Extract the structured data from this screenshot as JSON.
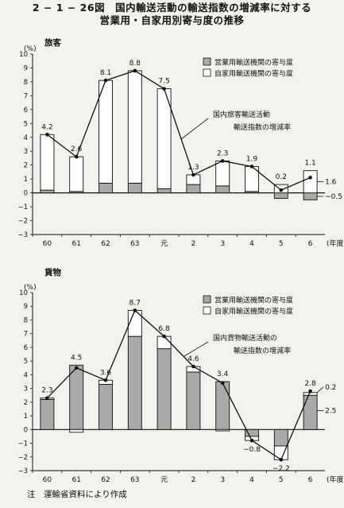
{
  "figure": {
    "title_line1": "2 − 1 − 26図　国内輸送活動の輸送指数の増減率に対する",
    "title_line2": "営業用・自家用別寄与度の推移",
    "note": "注　運輸省資料により作成"
  },
  "colors": {
    "commercial_fill": "#a9a9a9",
    "private_fill": "#ffffff",
    "stroke": "#111111",
    "background": "#f3f2ee"
  },
  "chart_data": [
    {
      "type": "bar",
      "panel_label": "旅客",
      "y_unit": "(%)",
      "x_unit": "(年度)",
      "categories": [
        "60",
        "61",
        "62",
        "63",
        "元",
        "2",
        "3",
        "4",
        "5",
        "6"
      ],
      "ylim": [
        -3,
        10
      ],
      "yticks": [
        -3,
        -2,
        -1,
        0,
        1,
        2,
        3,
        4,
        5,
        6,
        7,
        8,
        9,
        10
      ],
      "series": [
        {
          "name": "営業用輸送機関の寄与度",
          "kind": "bar-stack",
          "values": [
            0.2,
            0.1,
            0.7,
            0.7,
            0.3,
            0.6,
            0.5,
            0.1,
            -0.4,
            -0.5
          ]
        },
        {
          "name": "自家用輸送機関の寄与度",
          "kind": "bar-stack",
          "values": [
            4.0,
            2.5,
            7.4,
            8.1,
            7.2,
            0.7,
            1.8,
            1.8,
            0.6,
            1.6
          ]
        },
        {
          "name": "国内旅客輸送活動輸送指数の増減率",
          "kind": "line",
          "values": [
            4.2,
            2.6,
            8.1,
            8.8,
            7.5,
            1.3,
            2.3,
            1.9,
            0.2,
            1.1
          ]
        }
      ],
      "data_labels": [
        "4.2",
        "2.6",
        "8.1",
        "8.8",
        "7.5",
        "1.3",
        "2.3",
        "1.9",
        "0.2",
        "1.1"
      ],
      "side_labels": [
        "1.6",
        "−0.5"
      ],
      "legend": {
        "placement": "top-right",
        "items": [
          "営業用輸送機関の寄与度",
          "自家用輸送機関の寄与度"
        ]
      },
      "annotation": [
        "国内旅客輸送活動",
        "輸送指数の増減率"
      ]
    },
    {
      "type": "bar",
      "panel_label": "貨物",
      "y_unit": "(%)",
      "x_unit": "(年度)",
      "categories": [
        "60",
        "61",
        "62",
        "63",
        "元",
        "2",
        "3",
        "4",
        "5",
        "6"
      ],
      "ylim": [
        -3,
        10
      ],
      "yticks": [
        -3,
        -2,
        -1,
        0,
        1,
        2,
        3,
        4,
        5,
        6,
        7,
        8,
        9,
        10
      ],
      "series": [
        {
          "name": "営業用輸送機関の寄与度",
          "kind": "bar-stack",
          "values": [
            2.2,
            4.7,
            3.3,
            6.8,
            5.9,
            4.2,
            3.5,
            -0.5,
            -1.2,
            2.5
          ]
        },
        {
          "name": "自家用輸送機関の寄与度",
          "kind": "bar-stack",
          "values": [
            0.1,
            -0.2,
            0.3,
            1.9,
            0.9,
            0.4,
            -0.1,
            -0.3,
            -1.0,
            0.2
          ]
        },
        {
          "name": "国内貨物輸送活動輸送指数の増減率",
          "kind": "line",
          "values": [
            2.3,
            4.5,
            3.6,
            8.7,
            6.8,
            4.6,
            3.4,
            -0.8,
            -2.2,
            2.8
          ]
        }
      ],
      "data_labels": [
        "2.3",
        "4.5",
        "3.6",
        "8.7",
        "6.8",
        "4.6",
        "3.4",
        "−0.8",
        "−2.2",
        "2.8"
      ],
      "side_labels": [
        "0.2",
        "2.5"
      ],
      "legend": {
        "placement": "top-right",
        "items": [
          "営業用輸送機関の寄与度",
          "自家用輸送機関の寄与度"
        ]
      },
      "annotation": [
        "国内貨物輸送活動の",
        "輸送指数の増減率"
      ]
    }
  ]
}
